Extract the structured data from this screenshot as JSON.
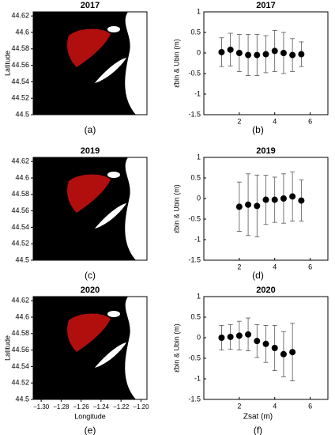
{
  "chart_data": [
    {
      "type": "map",
      "title": "2017",
      "panel_label": "(a)",
      "ylabel": "Latitude",
      "ylim": [
        44.5,
        44.625
      ],
      "yticks": [
        44.5,
        44.52,
        44.54,
        44.56,
        44.58,
        44.6,
        44.62
      ],
      "xlim": [
        -1.308,
        -1.194
      ]
    },
    {
      "type": "errorbar",
      "title": "2017",
      "panel_label": "(b)",
      "ylabel": "ε̄bin & Ubin (m)",
      "x": [
        1,
        1.5,
        2,
        2.5,
        3,
        3.5,
        4,
        4.5,
        5,
        5.5
      ],
      "values": [
        0.02,
        0.08,
        0.0,
        -0.05,
        -0.05,
        -0.03,
        0.05,
        0.0,
        -0.05,
        -0.03
      ],
      "errors": [
        0.35,
        0.4,
        0.45,
        0.5,
        0.5,
        0.45,
        0.5,
        0.5,
        0.4,
        0.3
      ],
      "color": "#000000",
      "xlim": [
        0,
        7
      ],
      "xticks": [
        2,
        4,
        6
      ],
      "ylim": [
        -1.5,
        1
      ],
      "yticks": [
        -1.5,
        -1,
        -0.5,
        0,
        0.5,
        1
      ]
    },
    {
      "type": "map",
      "title": "2019",
      "panel_label": "(c)",
      "ylim": [
        44.5,
        44.625
      ],
      "yticks": [
        44.5,
        44.52,
        44.54,
        44.56,
        44.58,
        44.6,
        44.62
      ],
      "xlim": [
        -1.308,
        -1.194
      ]
    },
    {
      "type": "errorbar",
      "title": "2019",
      "panel_label": "(d)",
      "ylabel": "ε̄bin & Ubin (m)",
      "x": [
        2,
        2.5,
        3,
        3.5,
        4,
        4.5,
        5,
        5.5
      ],
      "values": [
        -0.2,
        -0.15,
        -0.18,
        -0.03,
        -0.03,
        0.0,
        0.05,
        -0.05
      ],
      "errors": [
        0.6,
        0.75,
        0.75,
        0.6,
        0.55,
        0.6,
        0.6,
        0.5
      ],
      "color": "#000000",
      "xlim": [
        0,
        7
      ],
      "xticks": [
        2,
        4,
        6
      ],
      "ylim": [
        -1.5,
        1
      ],
      "yticks": [
        -1.5,
        -1,
        -0.5,
        0,
        0.5,
        1
      ]
    },
    {
      "type": "map",
      "title": "2020",
      "panel_label": "(e)",
      "ylabel": "Latitude",
      "xlabel": "Longitude",
      "ylim": [
        44.5,
        44.625
      ],
      "yticks": [
        44.5,
        44.52,
        44.54,
        44.56,
        44.58,
        44.6,
        44.62
      ],
      "xlim": [
        -1.308,
        -1.194
      ],
      "xticks": [
        {
          "value": -1.3,
          "label": "−1.30"
        },
        {
          "value": -1.28,
          "label": "−1.28"
        },
        {
          "value": -1.26,
          "label": "−1.26"
        },
        {
          "value": -1.24,
          "label": "−1.24"
        },
        {
          "value": -1.22,
          "label": "−1.22"
        },
        {
          "value": -1.2,
          "label": "−1.20"
        }
      ]
    },
    {
      "type": "errorbar",
      "title": "2020",
      "panel_label": "(f)",
      "ylabel": "ε̄bin & Ubin (m)",
      "xlabel": "Zsat (m)",
      "x": [
        1,
        1.5,
        2,
        2.5,
        3,
        3.5,
        4,
        4.5,
        5
      ],
      "values": [
        0.0,
        0.02,
        0.05,
        0.08,
        -0.08,
        -0.15,
        -0.25,
        -0.4,
        -0.35
      ],
      "errors": [
        0.3,
        0.3,
        0.35,
        0.4,
        0.4,
        0.45,
        0.55,
        0.55,
        0.7
      ],
      "color": "#000000",
      "xlim": [
        0,
        7
      ],
      "xticks": [
        2,
        4,
        6
      ],
      "ylim": [
        -1.5,
        1
      ],
      "yticks": [
        -1.5,
        -1,
        -0.5,
        0,
        0.5,
        1
      ]
    }
  ]
}
